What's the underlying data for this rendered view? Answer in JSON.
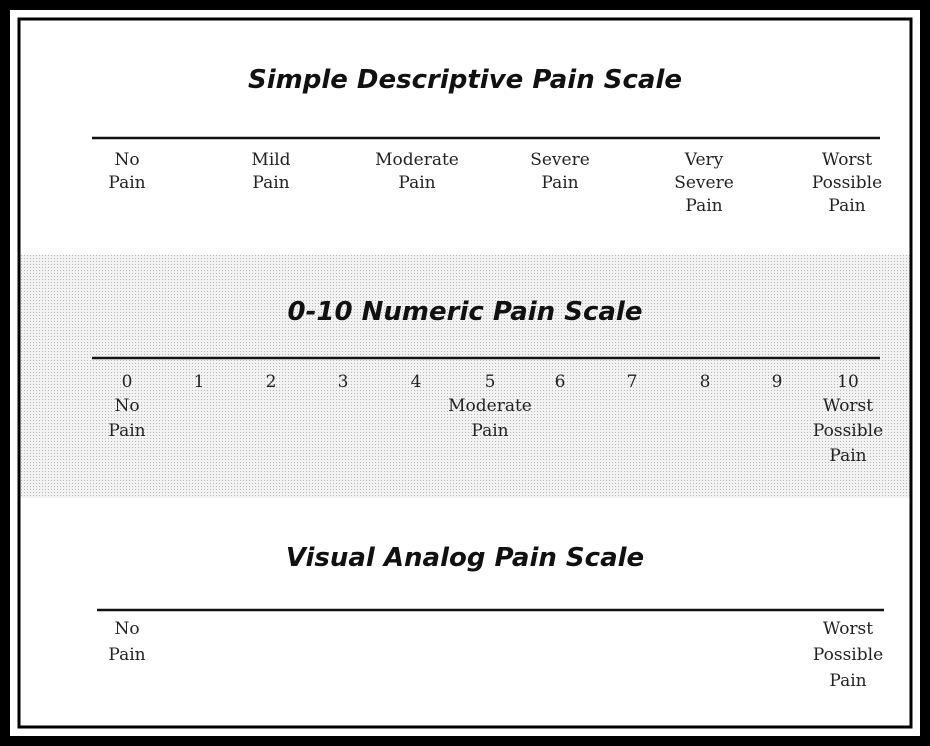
{
  "sections": [
    {
      "title": "Simple Descriptive Pain Scale",
      "labels": [
        [
          "No",
          "Pain"
        ],
        [
          "Mild",
          "Pain"
        ],
        [
          "Moderate",
          "Pain"
        ],
        [
          "Severe",
          "Pain"
        ],
        [
          "Very",
          "Severe",
          "Pain"
        ],
        [
          "Worst",
          "Possible",
          "Pain"
        ]
      ]
    },
    {
      "title": "0-10 Numeric Pain Scale",
      "numbers": [
        0,
        1,
        2,
        3,
        4,
        5,
        6,
        7,
        8,
        9,
        10
      ],
      "labels": [
        [
          "No",
          "Pain"
        ],
        [
          "Moderate",
          "Pain"
        ],
        [
          "Worst",
          "Possible",
          "Pain"
        ]
      ]
    },
    {
      "title": "Visual Analog Pain Scale",
      "labels": [
        [
          "No",
          "Pain"
        ],
        [
          "Worst",
          "Possible",
          "Pain"
        ]
      ]
    }
  ]
}
